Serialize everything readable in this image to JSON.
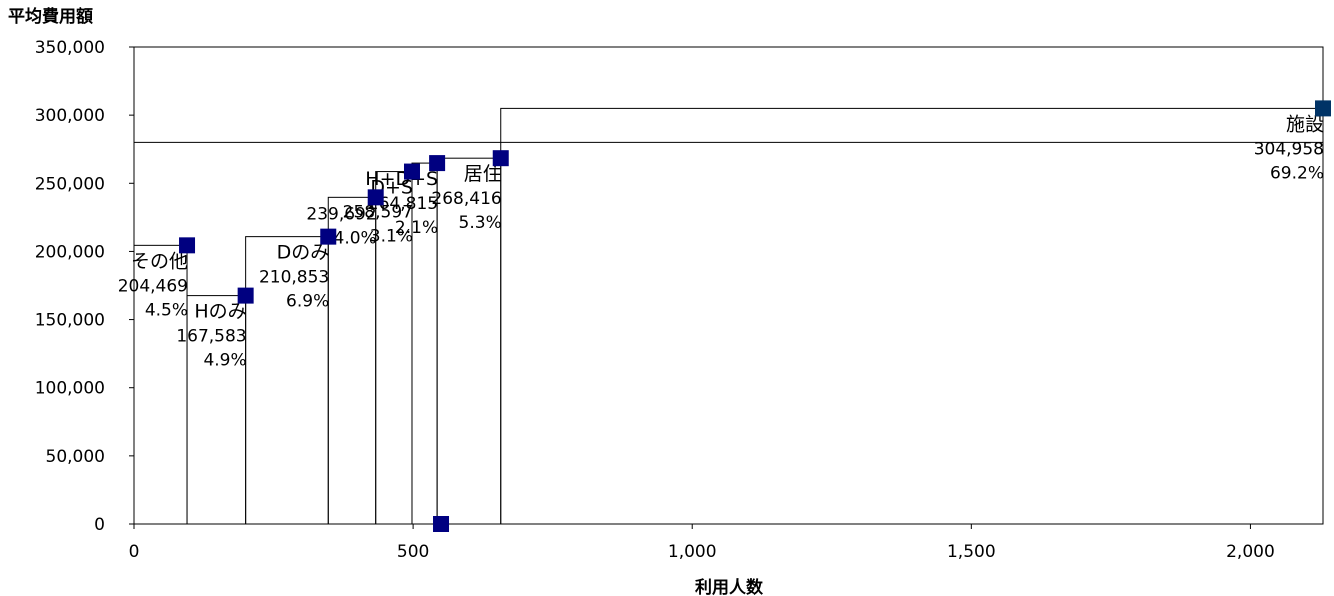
{
  "chart_data": {
    "type": "step-area",
    "ylabel": "平均費用額",
    "xlabel": "利用人数",
    "xlim": [
      0,
      2130
    ],
    "ylim": [
      0,
      350000
    ],
    "xticks": [
      0,
      500,
      1000,
      1500,
      2000
    ],
    "xtick_labels": [
      "0",
      "500",
      "1,000",
      "1,500",
      "2,000"
    ],
    "yticks": [
      0,
      50000,
      100000,
      150000,
      200000,
      250000,
      300000,
      350000
    ],
    "ytick_labels": [
      "0",
      "50,000",
      "100,000",
      "150,000",
      "200,000",
      "250,000",
      "300,000",
      "350,000"
    ],
    "mean_line": 280000,
    "marker_color": "#000080",
    "last_marker_color": "#003366",
    "segments": [
      {
        "name": "その他",
        "x_start": 0,
        "x_end": 95,
        "value": 204469,
        "value_label": "204,469",
        "share": "4.5%"
      },
      {
        "name": "Hのみ",
        "x_start": 95,
        "x_end": 200,
        "value": 167583,
        "value_label": "167,583",
        "share": "4.9%"
      },
      {
        "name": "Dのみ",
        "x_start": 200,
        "x_end": 348,
        "value": 210853,
        "value_label": "210,853",
        "share": "6.9%"
      },
      {
        "name": "",
        "x_start": 348,
        "x_end": 433,
        "value": 239692,
        "value_label": "239,692",
        "share": "4.0%"
      },
      {
        "name": "D+S",
        "x_start": 433,
        "x_end": 498,
        "value": 258597,
        "value_label": "258,597",
        "share": "3.1%"
      },
      {
        "name": "H+D+S",
        "x_start": 498,
        "x_end": 543,
        "value": 264815,
        "value_label": "264,815",
        "share": "2.1%"
      },
      {
        "name": "居住",
        "x_start": 543,
        "x_end": 657,
        "value": 268416,
        "value_label": "268,416",
        "share": "5.3%"
      },
      {
        "name": "施設",
        "x_start": 657,
        "x_end": 2130,
        "value": 304958,
        "value_label": "304,958",
        "share": "69.2%"
      }
    ],
    "extra_points": [
      {
        "x": 550,
        "y": 0
      }
    ]
  }
}
